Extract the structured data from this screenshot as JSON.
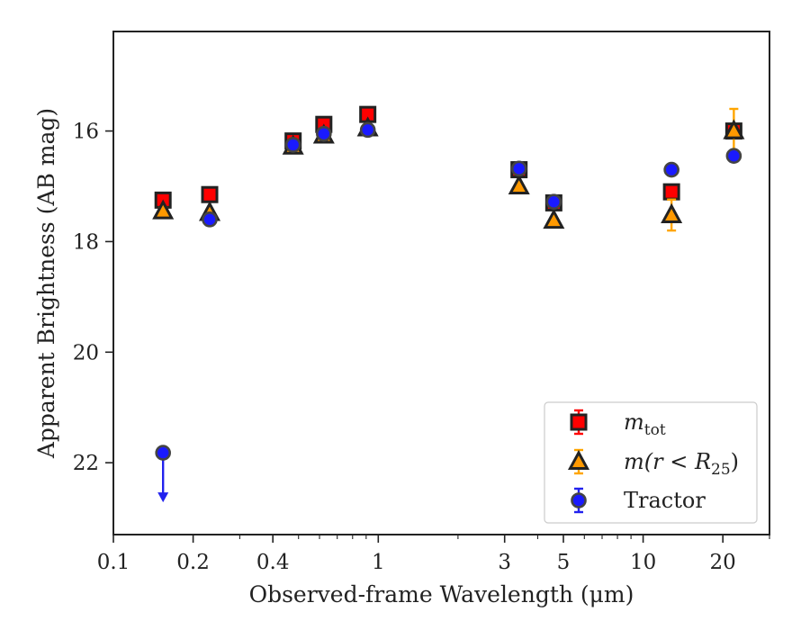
{
  "chart_data": {
    "type": "scatter",
    "xlabel": "Observed-frame Wavelength (μm)",
    "ylabel": "Apparent Brightness (AB mag)",
    "xscale": "log",
    "xlim": [
      0.1,
      30
    ],
    "ylim": [
      23.3,
      14.2
    ],
    "y_inverted": true,
    "x_ticks": [
      0.1,
      0.2,
      0.4,
      1,
      3,
      5,
      10,
      20
    ],
    "x_tick_labels": [
      "0.1",
      "0.2",
      "0.4",
      "1",
      "3",
      "5",
      "10",
      "20"
    ],
    "y_ticks": [
      16,
      18,
      20,
      22
    ],
    "y_tick_labels": [
      "16",
      "18",
      "20",
      "22"
    ],
    "legend_position": "lower-right",
    "series": [
      {
        "label_main": "m",
        "label_sub": "tot",
        "marker": "square",
        "color": "#ff0000",
        "edgecolor": "#222222",
        "errcolor": "#ff0000",
        "points": [
          {
            "x": 0.154,
            "y": 17.25,
            "err": 0.06
          },
          {
            "x": 0.231,
            "y": 17.15,
            "err": 0.05
          },
          {
            "x": 0.477,
            "y": 16.18,
            "err": 0.03
          },
          {
            "x": 0.623,
            "y": 15.88,
            "err": 0.03
          },
          {
            "x": 0.913,
            "y": 15.7,
            "err": 0.03
          },
          {
            "x": 3.4,
            "y": 16.7,
            "err": 0.03
          },
          {
            "x": 4.6,
            "y": 17.3,
            "err": 0.03
          },
          {
            "x": 12.8,
            "y": 17.1,
            "err": 0.06
          },
          {
            "x": 22.0,
            "y": 16.0,
            "err": 0.1
          }
        ]
      },
      {
        "label_main": "m(r < R",
        "label_sub": "25",
        "label_tail": ")",
        "marker": "triangle",
        "color": "#ff9900",
        "edgecolor": "#222222",
        "errcolor": "#ffa500",
        "points": [
          {
            "x": 0.154,
            "y": 17.45,
            "err": 0.06
          },
          {
            "x": 0.231,
            "y": 17.48,
            "err": 0.05
          },
          {
            "x": 0.477,
            "y": 16.28,
            "err": 0.03
          },
          {
            "x": 0.623,
            "y": 16.08,
            "err": 0.03
          },
          {
            "x": 0.913,
            "y": 15.95,
            "err": 0.03
          },
          {
            "x": 3.4,
            "y": 17.0,
            "err": 0.03
          },
          {
            "x": 4.6,
            "y": 17.62,
            "err": 0.03
          },
          {
            "x": 12.8,
            "y": 17.52,
            "err": 0.28
          },
          {
            "x": 22.0,
            "y": 16.0,
            "err": 0.4
          }
        ]
      },
      {
        "label_main": "Tractor",
        "marker": "circle",
        "color": "#1a1aff",
        "edgecolor": "#444444",
        "errcolor": "#2222ee",
        "points": [
          {
            "x": 0.154,
            "y": 21.82,
            "err": 0.05,
            "upper_limit": true
          },
          {
            "x": 0.231,
            "y": 17.6,
            "err": 0.05
          },
          {
            "x": 0.477,
            "y": 16.25,
            "err": 0.03
          },
          {
            "x": 0.623,
            "y": 16.05,
            "err": 0.03
          },
          {
            "x": 0.913,
            "y": 15.98,
            "err": 0.03
          },
          {
            "x": 3.4,
            "y": 16.68,
            "err": 0.03
          },
          {
            "x": 4.6,
            "y": 17.28,
            "err": 0.03
          },
          {
            "x": 12.8,
            "y": 16.7,
            "err": 0.08
          },
          {
            "x": 22.0,
            "y": 16.45,
            "err": 0.1
          }
        ]
      }
    ]
  }
}
